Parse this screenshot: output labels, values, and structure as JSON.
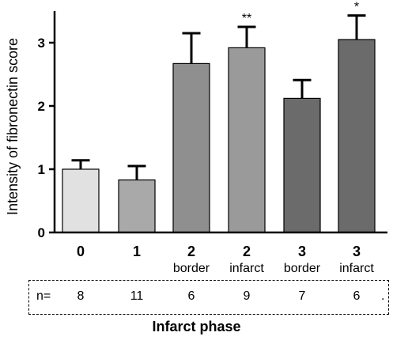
{
  "chart_data": {
    "type": "bar",
    "categories": [
      {
        "line1": "0",
        "line2": ""
      },
      {
        "line1": "1",
        "line2": ""
      },
      {
        "line1": "2",
        "line2": "border"
      },
      {
        "line1": "2",
        "line2": "infarct"
      },
      {
        "line1": "3",
        "line2": "border"
      },
      {
        "line1": "3",
        "line2": "infarct"
      }
    ],
    "values": [
      1.0,
      0.83,
      2.67,
      2.92,
      2.12,
      3.05
    ],
    "errors": [
      0.14,
      0.22,
      0.48,
      0.33,
      0.29,
      0.38
    ],
    "significance": [
      "",
      "",
      "",
      "**",
      "",
      "*"
    ],
    "bar_colors": [
      "#e1e1e1",
      "#a9a9a9",
      "#8f8f8f",
      "#9a9a9a",
      "#6b6b6b",
      "#6b6b6b"
    ],
    "ylabel": "Intensity of fibronectin score",
    "xlabel": "Infarct phase",
    "ylim": [
      0,
      3.5
    ],
    "yticks": [
      0,
      1,
      2,
      3
    ],
    "grid": false
  },
  "n_row": {
    "label": "n=",
    "values": [
      "8",
      "11",
      "6",
      "9",
      "7",
      "6"
    ],
    "trailing": "."
  }
}
